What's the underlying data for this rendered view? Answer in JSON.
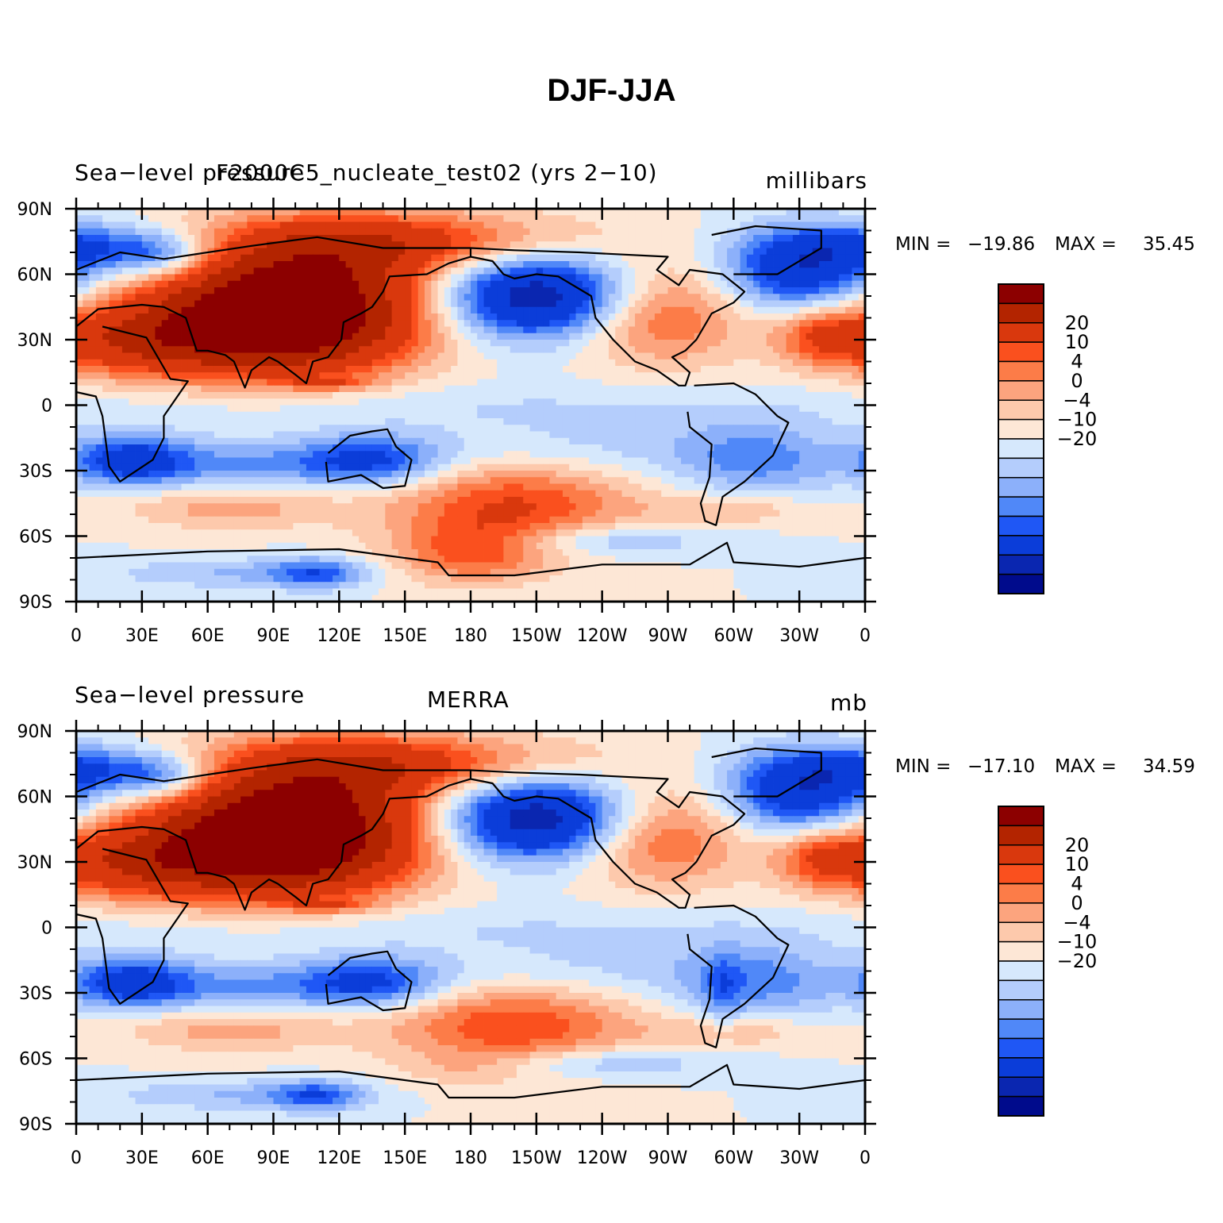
{
  "title": "DJF-JJA",
  "panels": [
    {
      "left_title": "Sea−level pressure",
      "center_title": "F2000C5_nucleate_test02 (yrs 2−10)",
      "units": "millibars",
      "min_label": "MIN =",
      "min_value": "−19.86",
      "max_label": "MAX =",
      "max_value": "35.45",
      "field_variant": "model"
    },
    {
      "left_title": "Sea−level pressure",
      "center_title": "MERRA",
      "units": "mb",
      "min_label": "MIN =",
      "min_value": "−17.10",
      "max_label": "MAX =",
      "max_value": "34.59",
      "field_variant": "obs"
    }
  ],
  "lat_ticks": [
    "90N",
    "60N",
    "30N",
    "0",
    "30S",
    "60S",
    "90S"
  ],
  "lat_values": [
    90,
    60,
    30,
    0,
    -30,
    -60,
    -90
  ],
  "lon_ticks": [
    "0",
    "30E",
    "60E",
    "90E",
    "120E",
    "150E",
    "180",
    "150W",
    "120W",
    "90W",
    "60W",
    "30W",
    "0"
  ],
  "colorbar": {
    "labels": [
      "20",
      "10",
      "4",
      "0",
      "−4",
      "−10",
      "−20"
    ],
    "colors": [
      "#8c0000",
      "#b32400",
      "#d9380d",
      "#fa501e",
      "#fc7c48",
      "#fca47e",
      "#fdc9ac",
      "#fde7d6",
      "#d6e8fc",
      "#b4cdfc",
      "#8cb0fa",
      "#5088f8",
      "#1f57f5",
      "#0b3dd9",
      "#0a26b0",
      "#000b8c"
    ]
  },
  "chart_data": {
    "type": "heatmap",
    "title": "DJF-JJA",
    "variable": "Sea-level pressure",
    "x_range": [
      0,
      360
    ],
    "y_range": [
      -90,
      90
    ],
    "contour_levels": [
      -20,
      -15,
      -10,
      -8,
      -6,
      -4,
      -2,
      0,
      2,
      4,
      6,
      8,
      10,
      15,
      20
    ],
    "panels": [
      {
        "name": "F2000C5_nucleate_test02 (yrs 2−10)",
        "units": "millibars",
        "min": -19.86,
        "max": 35.45
      },
      {
        "name": "MERRA",
        "units": "mb",
        "min": -17.1,
        "max": 34.59
      }
    ]
  }
}
